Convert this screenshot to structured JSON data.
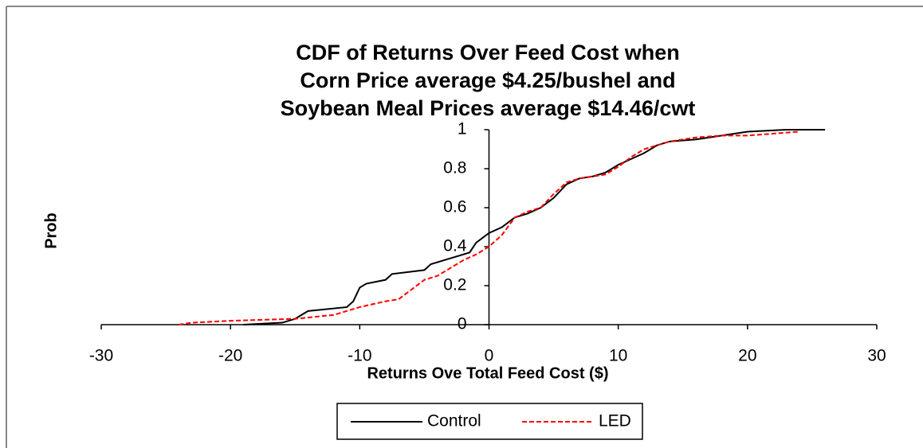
{
  "chart_data": {
    "type": "line",
    "title": [
      "CDF of Returns Over Feed Cost when",
      "Corn Price average $4.25/bushel and",
      "Soybean Meal Prices average $14.46/cwt"
    ],
    "xlabel": "Returns Ove Total Feed Cost ($)",
    "ylabel": "Prob",
    "xlim": [
      -30,
      30
    ],
    "xticks": [
      -30,
      -20,
      -10,
      0,
      10,
      20,
      30
    ],
    "ylim": [
      0,
      1
    ],
    "yticks": [
      0,
      0.2,
      0.4,
      0.6,
      0.8,
      1
    ],
    "legend": "bottom",
    "series": [
      {
        "name": "Control",
        "color": "#000000",
        "dash": "solid",
        "x": [
          -19,
          -16,
          -15,
          -14,
          -11,
          -10.5,
          -10,
          -9.5,
          -8,
          -7.5,
          -5,
          -4.5,
          -3,
          -1.5,
          -1,
          0,
          1,
          2,
          3,
          4,
          5,
          6,
          7,
          8,
          9,
          10,
          11,
          12,
          13,
          14,
          16,
          18,
          20,
          23,
          26
        ],
        "values": [
          0,
          0.01,
          0.03,
          0.07,
          0.09,
          0.12,
          0.19,
          0.21,
          0.23,
          0.26,
          0.28,
          0.31,
          0.34,
          0.37,
          0.42,
          0.47,
          0.5,
          0.55,
          0.57,
          0.6,
          0.65,
          0.72,
          0.75,
          0.76,
          0.78,
          0.82,
          0.85,
          0.88,
          0.92,
          0.94,
          0.95,
          0.97,
          0.99,
          1,
          1
        ]
      },
      {
        "name": "LED",
        "color": "#ff0000",
        "dash": "dashed",
        "x": [
          -24,
          -23,
          -20,
          -15,
          -12,
          -10,
          -8,
          -7,
          -6,
          -5,
          -4,
          -3,
          -2,
          -1,
          0,
          1,
          2,
          3,
          4,
          5,
          6,
          7,
          8,
          9,
          10,
          11,
          12,
          13,
          14,
          16,
          18,
          20,
          24
        ],
        "values": [
          0,
          0.01,
          0.02,
          0.03,
          0.05,
          0.09,
          0.12,
          0.13,
          0.18,
          0.23,
          0.25,
          0.29,
          0.33,
          0.36,
          0.4,
          0.46,
          0.55,
          0.58,
          0.6,
          0.67,
          0.73,
          0.75,
          0.76,
          0.77,
          0.81,
          0.86,
          0.9,
          0.92,
          0.94,
          0.96,
          0.97,
          0.97,
          0.99
        ]
      }
    ]
  }
}
